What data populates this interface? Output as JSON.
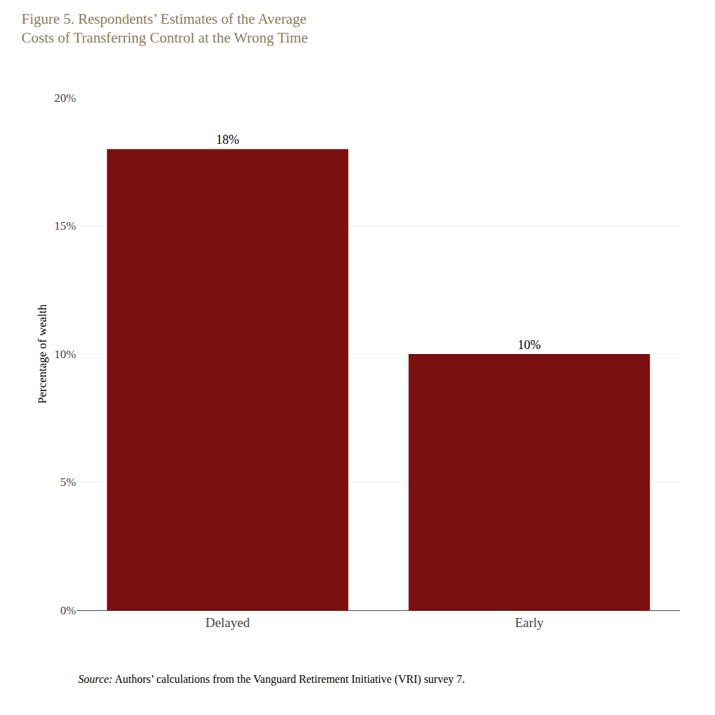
{
  "chart_data": {
    "type": "bar",
    "title": "Figure 5. Respondents’ Estimates of the Average\nCosts of Transferring Control at the Wrong Time",
    "ylabel": "Percentage of wealth",
    "categories": [
      "Delayed",
      "Early"
    ],
    "values": [
      18,
      10
    ],
    "value_labels": [
      "18%",
      "10%"
    ],
    "data_labels": true,
    "color": "#7B1010",
    "ylim": [
      0,
      20
    ],
    "yticks": [
      {
        "value": 0,
        "label": "0%"
      },
      {
        "value": 5,
        "label": "5%"
      },
      {
        "value": 10,
        "label": "10%"
      },
      {
        "value": 15,
        "label": "15%"
      },
      {
        "value": 20,
        "label": "20%"
      }
    ],
    "grid": true,
    "annotations": [
      "Source: Authors’ calculations from the Vanguard Retirement Initiative (VRI) survey 7."
    ]
  }
}
